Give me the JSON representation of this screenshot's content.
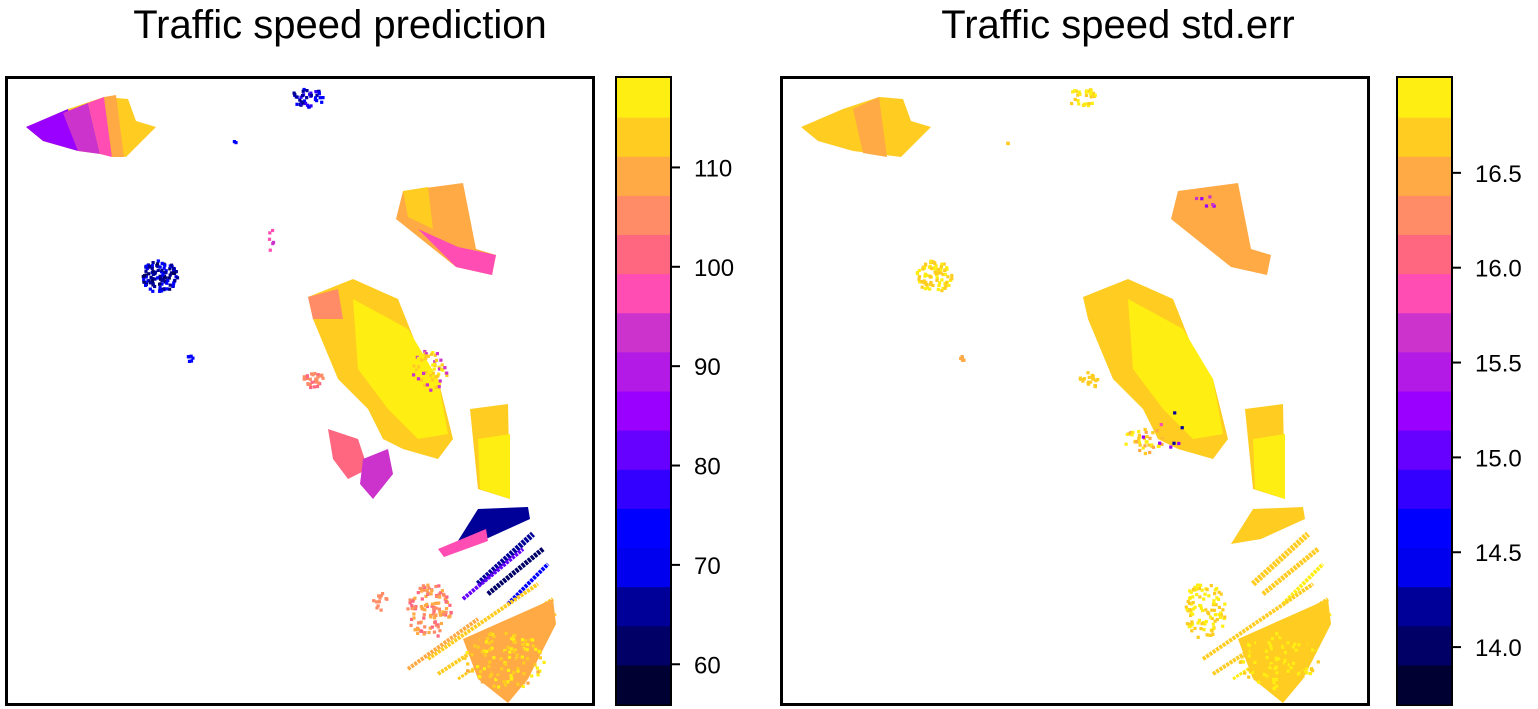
{
  "palette": [
    "#000033",
    "#000066",
    "#000099",
    "#0000cc",
    "#0000ff",
    "#3300ff",
    "#6600ff",
    "#9900ff",
    "#b31ae6",
    "#cc33cc",
    "#e633b3",
    "#ff4d99",
    "#ff6680",
    "#ff8066",
    "#ff994d",
    "#ffb233",
    "#ffcc1a",
    "#ffe60d",
    "#ffff66"
  ],
  "chart_data": [
    {
      "type": "heatmap",
      "title": "Traffic speed prediction",
      "colorbar": {
        "ticks": [
          60,
          70,
          80,
          90,
          100,
          110
        ],
        "range": [
          56,
          119
        ],
        "levels": 16
      },
      "regions": [
        {
          "name": "northwest",
          "value": 100
        },
        {
          "name": "north-central",
          "value": 72
        },
        {
          "name": "west",
          "value": 63
        },
        {
          "name": "northeast",
          "value": 104
        },
        {
          "name": "central",
          "value": 112
        },
        {
          "name": "southeast-dark-band",
          "value": 62
        },
        {
          "name": "south",
          "value": 108
        }
      ]
    },
    {
      "type": "heatmap",
      "title": "Traffic speed std.err",
      "colorbar": {
        "ticks": [
          14.0,
          14.5,
          15.0,
          15.5,
          16.0,
          16.5
        ],
        "range": [
          13.7,
          17.0
        ],
        "levels": 16
      },
      "regions": [
        {
          "name": "northwest",
          "value": 16.6
        },
        {
          "name": "northeast",
          "value": 16.2
        },
        {
          "name": "central",
          "value": 16.6
        },
        {
          "name": "south",
          "value": 16.7
        }
      ]
    }
  ],
  "left_panel": {
    "title": "Traffic speed prediction",
    "tick_labels": [
      "110",
      "100",
      "90",
      "80",
      "70",
      "60"
    ]
  },
  "right_panel": {
    "title": "Traffic speed std.err",
    "tick_labels": [
      "16.5",
      "16.0",
      "15.5",
      "15.0",
      "14.5",
      "14.0"
    ]
  }
}
